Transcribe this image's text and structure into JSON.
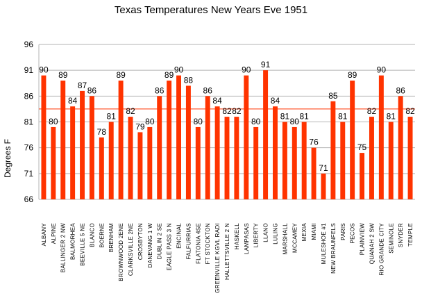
{
  "chart_data": {
    "type": "bar",
    "title": "Texas Temperatures New Years Eve 1951",
    "xlabel": "",
    "ylabel": "Degrees F",
    "ylim": [
      66,
      96
    ],
    "yticks": [
      66,
      71,
      76,
      81,
      86,
      91,
      96
    ],
    "grid": true,
    "bar_color": "#ff3300",
    "reference_line": {
      "value": 83.5,
      "color": "#ff3300"
    },
    "categories": [
      "ALBANY",
      "ALPINE",
      "BALLINGER 2 NW",
      "BALMORHEA",
      "BEEVILLE 5 NE",
      "BLANCO",
      "BOERNE",
      "BRENHAM",
      "BROWNWOOD 2ENE",
      "CLARKSVILLE 2NE",
      "CROSBYTON",
      "DANEVANG 1 W",
      "DUBLIN 2 SE",
      "EAGLE PASS 3 N",
      "ENCINAL",
      "FALFURRIAS",
      "FLATONIA 4SE",
      "FT STOCKTON",
      "GREENVILLE KGVL RADI",
      "HALLETTSVILLE 2 N",
      "HASKELL",
      "LAMPASAS",
      "LIBERTY",
      "LLANO",
      "LULING",
      "MARSHALL",
      "MCCAMEY",
      "MEXIA",
      "MIAMI",
      "MULESHOE #1",
      "NEW BRAUNFELS",
      "PARIS",
      "PECOS",
      "PLAINVIEW",
      "QUANAH 2 SW",
      "RIO GRANDE CITY",
      "SEMINOLE",
      "SNYDER",
      "TEMPLE"
    ],
    "values": [
      90,
      80,
      89,
      84,
      87,
      86,
      78,
      81,
      89,
      82,
      79,
      80,
      86,
      89,
      90,
      88,
      80,
      86,
      84,
      82,
      82,
      90,
      80,
      91,
      84,
      81,
      80,
      81,
      76,
      71,
      85,
      81,
      89,
      75,
      82,
      90,
      81,
      86,
      82
    ]
  }
}
